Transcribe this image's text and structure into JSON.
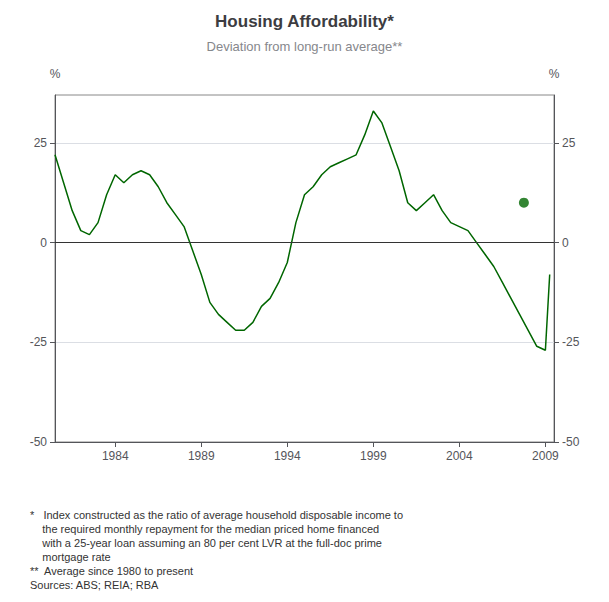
{
  "chart_data": {
    "type": "line",
    "title": "Housing Affordability*",
    "subtitle": "Deviation from long-run average**",
    "ylabel": "%",
    "y2label": "%",
    "annotations": [
      "*   Index constructed as the ratio of average household disposable income to\n    the required monthly repayment for the median priced home financed\n    with a 25-year loan assuming an 80 per cent LVR at the full-doc prime\n    mortgage rate",
      "**  Average since 1980 to present",
      "Sources: ABS; REIA; RBA"
    ],
    "xlim": [
      1980.5,
      2009.5
    ],
    "xticks": [
      1984,
      1989,
      1994,
      1999,
      2004,
      2009
    ],
    "ylim": [
      -50,
      37
    ],
    "yticks": [
      -50,
      -25,
      0,
      25
    ],
    "y2lim": [
      -50,
      37
    ],
    "y2ticks": [
      -50,
      -25,
      0,
      25
    ],
    "grid": true,
    "hlines": [
      {
        "y": 0,
        "color": "#333333"
      }
    ],
    "series": [
      {
        "type": "line",
        "color": "#006600",
        "x": [
          1980.5,
          1981.0,
          1981.5,
          1982.0,
          1982.5,
          1983.0,
          1983.5,
          1984.0,
          1984.5,
          1985.0,
          1985.5,
          1986.0,
          1986.5,
          1987.0,
          1987.5,
          1988.0,
          1988.5,
          1989.0,
          1989.5,
          1990.0,
          1990.5,
          1991.0,
          1991.5,
          1992.0,
          1992.5,
          1993.0,
          1993.5,
          1994.0,
          1994.5,
          1995.0,
          1995.5,
          1996.0,
          1996.5,
          1997.0,
          1997.5,
          1998.0,
          1998.5,
          1999.0,
          1999.5,
          2000.0,
          2000.5,
          2001.0,
          2001.5,
          2002.0,
          2002.5,
          2003.0,
          2003.5,
          2004.0,
          2004.5,
          2005.0,
          2005.5,
          2006.0,
          2006.5,
          2007.0,
          2007.5,
          2008.0,
          2008.5,
          2009.0,
          2009.25
        ],
        "values": [
          22,
          15,
          8,
          3,
          2,
          5,
          12,
          17,
          15,
          17,
          18,
          17,
          14,
          10,
          7,
          4,
          -2,
          -8,
          -15,
          -18,
          -20,
          -22,
          -22,
          -20,
          -16,
          -14,
          -10,
          -5,
          5,
          12,
          14,
          17,
          19,
          20,
          21,
          22,
          27,
          33,
          30,
          24,
          18,
          10,
          8,
          10,
          12,
          8,
          5,
          4,
          3,
          0,
          -3,
          -6,
          -10,
          -14,
          -18,
          -22,
          -26,
          -27,
          -8
        ]
      },
      {
        "type": "scatter",
        "color": "#006600",
        "x": [
          2007.75
        ],
        "values": [
          10
        ]
      }
    ]
  }
}
